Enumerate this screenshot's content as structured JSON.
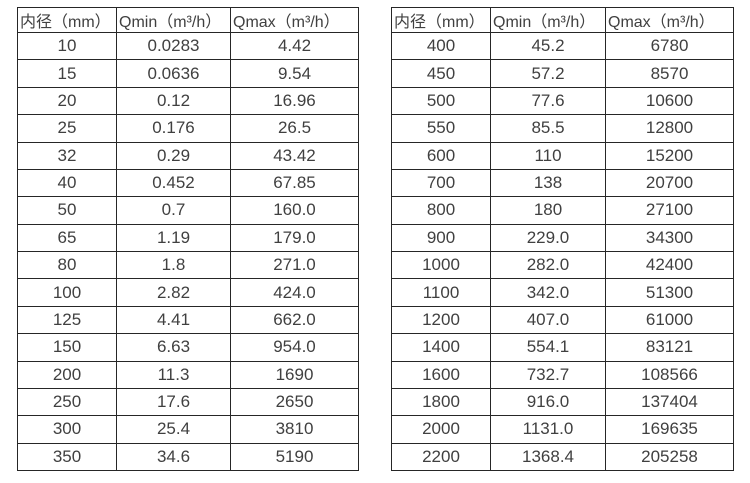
{
  "page": {
    "background": "#ffffff",
    "text_color": "#404040",
    "border_color": "#262626"
  },
  "chart_data": [
    {
      "type": "table",
      "name": "flow-rate-table-small-diameters",
      "columns": [
        "内径（mm）",
        "Qmin（m³/h）",
        "Qmax（m³/h）"
      ],
      "rows": [
        [
          "10",
          "0.0283",
          "4.42"
        ],
        [
          "15",
          "0.0636",
          "9.54"
        ],
        [
          "20",
          "0.12",
          "16.96"
        ],
        [
          "25",
          "0.176",
          "26.5"
        ],
        [
          "32",
          "0.29",
          "43.42"
        ],
        [
          "40",
          "0.452",
          "67.85"
        ],
        [
          "50",
          "0.7",
          "160.0"
        ],
        [
          "65",
          "1.19",
          "179.0"
        ],
        [
          "80",
          "1.8",
          "271.0"
        ],
        [
          "100",
          "2.82",
          "424.0"
        ],
        [
          "125",
          "4.41",
          "662.0"
        ],
        [
          "150",
          "6.63",
          "954.0"
        ],
        [
          "200",
          "11.3",
          "1690"
        ],
        [
          "250",
          "17.6",
          "2650"
        ],
        [
          "300",
          "25.4",
          "3810"
        ],
        [
          "350",
          "34.6",
          "5190"
        ]
      ]
    },
    {
      "type": "table",
      "name": "flow-rate-table-large-diameters",
      "columns": [
        "内径（mm）",
        "Qmin（m³/h）",
        "Qmax（m³/h）"
      ],
      "rows": [
        [
          "400",
          "45.2",
          "6780"
        ],
        [
          "450",
          "57.2",
          "8570"
        ],
        [
          "500",
          "77.6",
          "10600"
        ],
        [
          "550",
          "85.5",
          "12800"
        ],
        [
          "600",
          "110",
          "15200"
        ],
        [
          "700",
          "138",
          "20700"
        ],
        [
          "800",
          "180",
          "27100"
        ],
        [
          "900",
          "229.0",
          "34300"
        ],
        [
          "1000",
          "282.0",
          "42400"
        ],
        [
          "1100",
          "342.0",
          "51300"
        ],
        [
          "1200",
          "407.0",
          "61000"
        ],
        [
          "1400",
          "554.1",
          "83121"
        ],
        [
          "1600",
          "732.7",
          "108566"
        ],
        [
          "1800",
          "916.0",
          "137404"
        ],
        [
          "2000",
          "1131.0",
          "169635"
        ],
        [
          "2200",
          "1368.4",
          "205258"
        ]
      ]
    }
  ]
}
